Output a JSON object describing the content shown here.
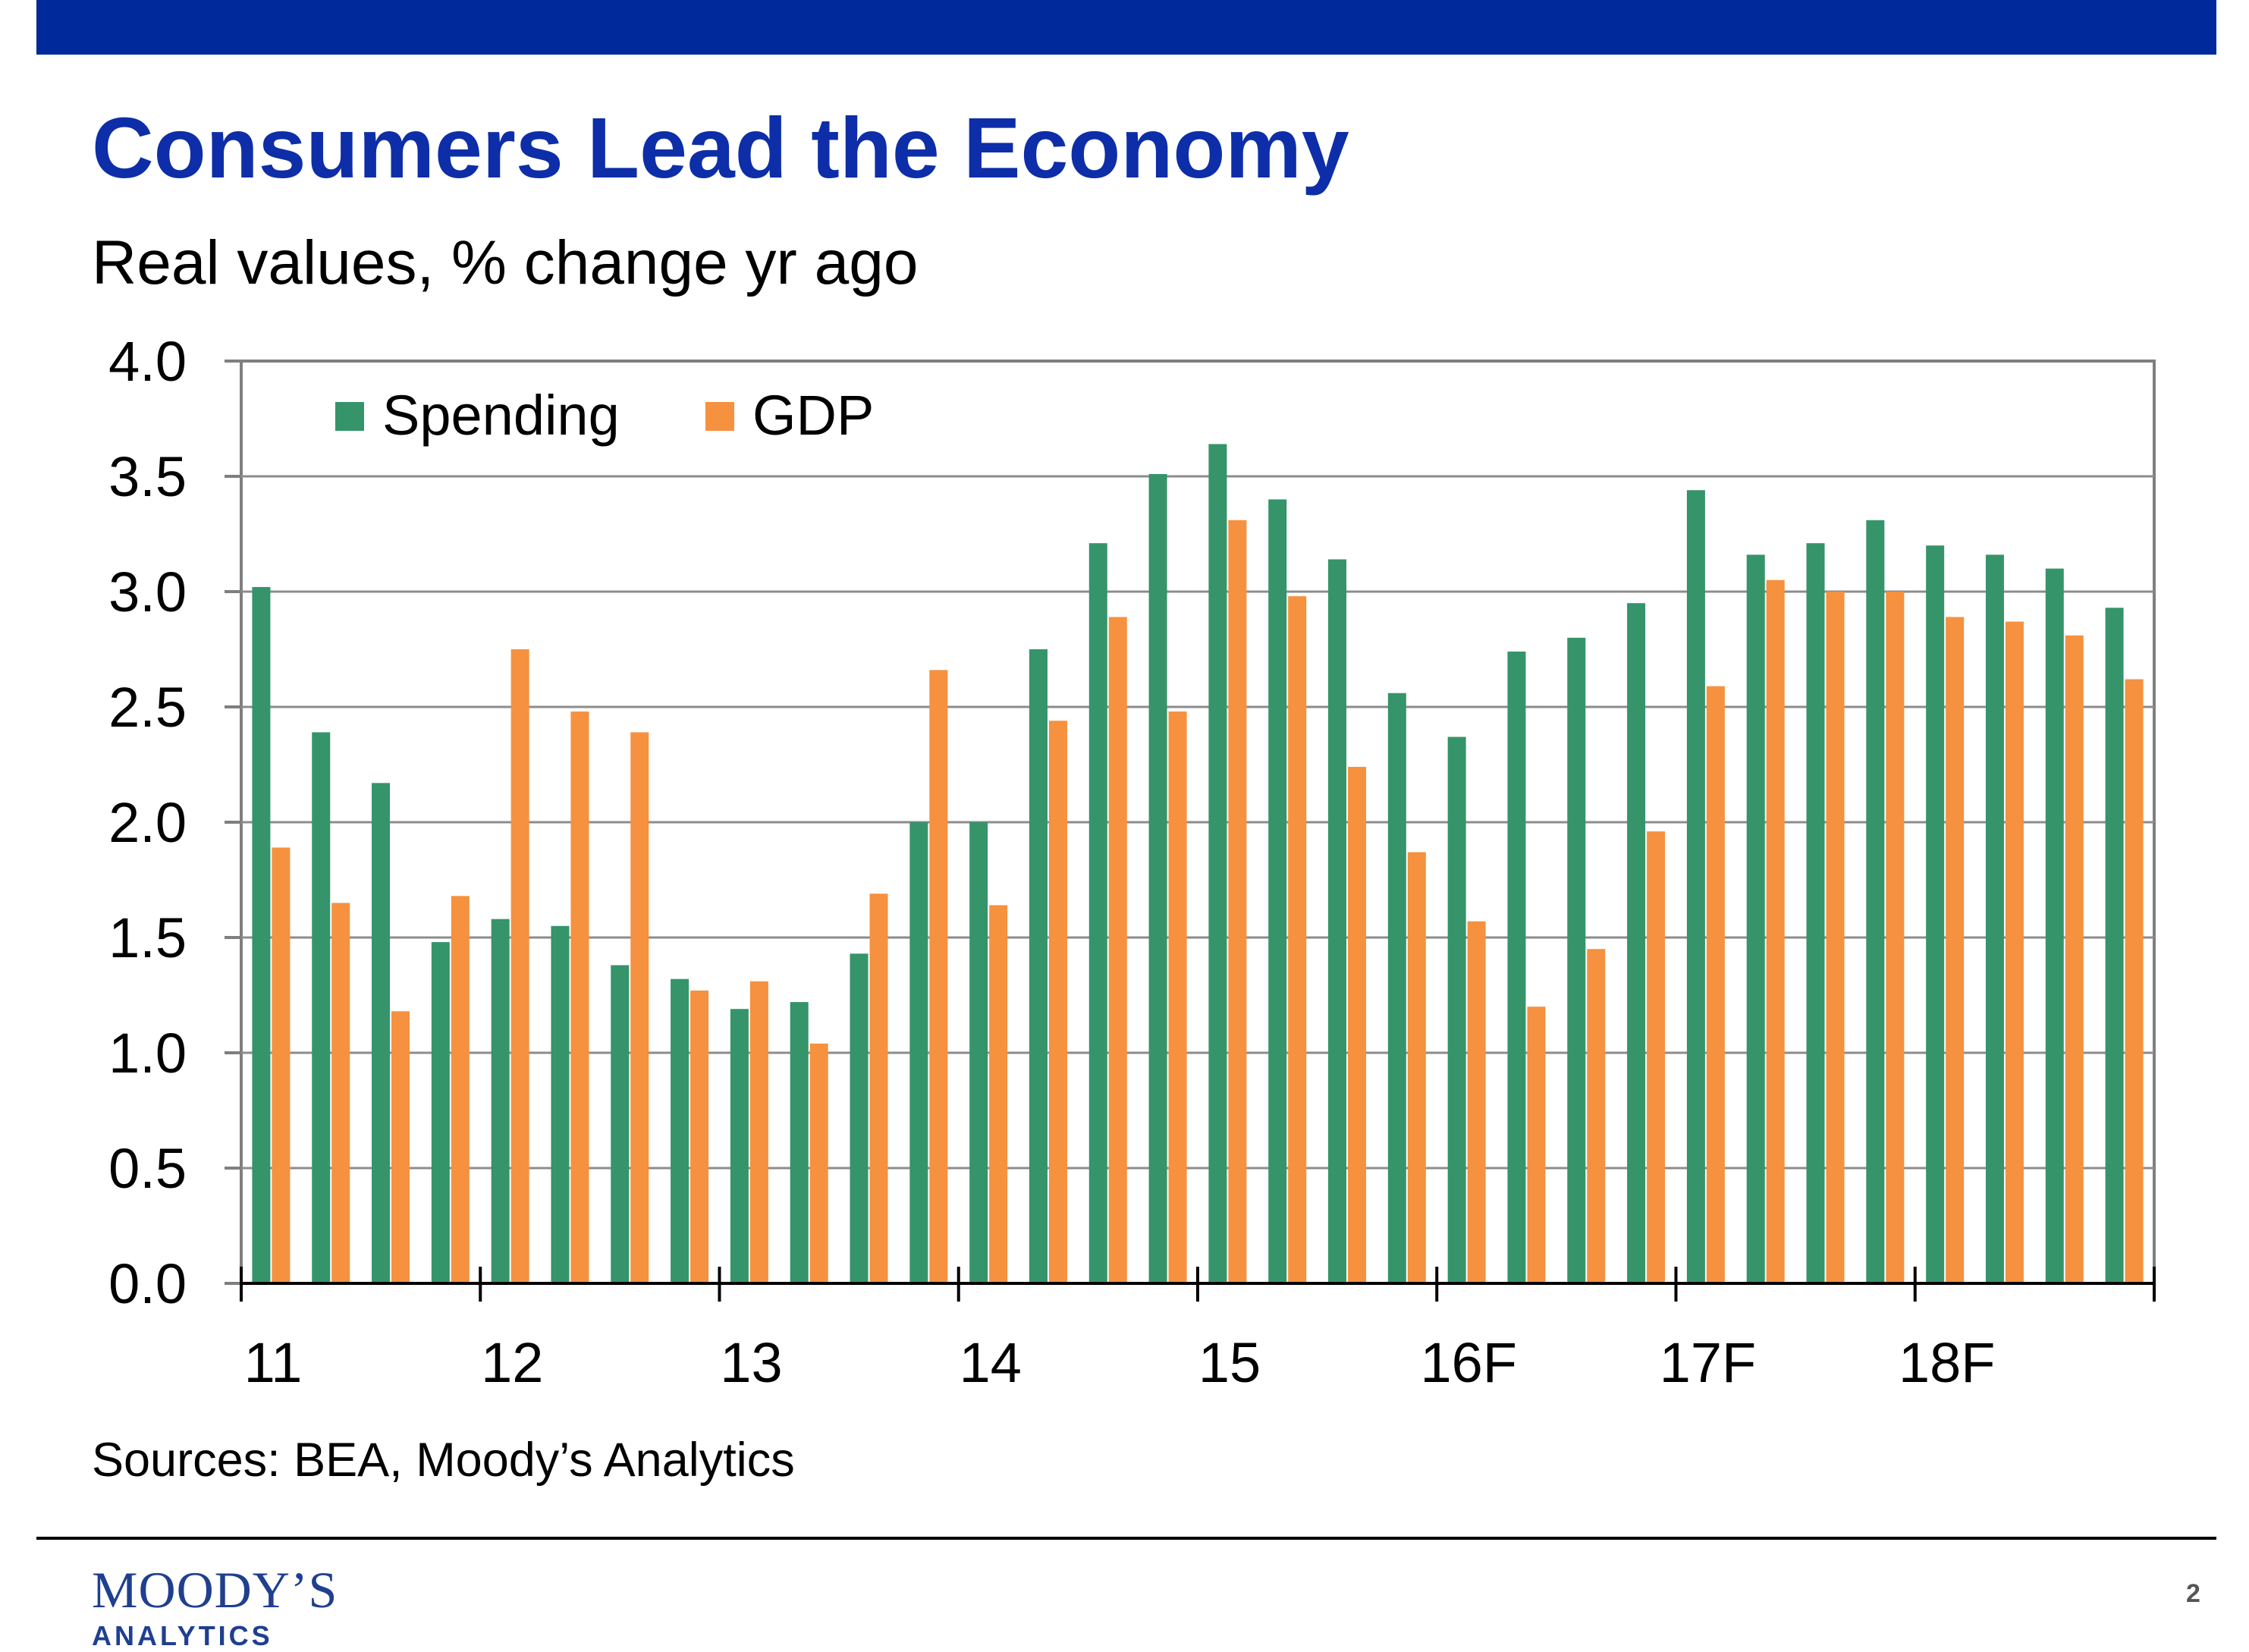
{
  "slide": {
    "title": "Consumers Lead the Economy",
    "source": "Sources: BEA, Moody’s Analytics",
    "page_number": "2",
    "logo": {
      "name": "MOODY’S",
      "sub": "ANALYTICS"
    },
    "colors": {
      "top_bar": "#002a9c",
      "title": "#0d2ea8",
      "logo": "#1f3f8f"
    }
  },
  "chart_data": {
    "type": "bar",
    "title": "",
    "subtitle": "Real values, % change yr ago",
    "xlabel": "",
    "ylabel": "",
    "ylim": [
      0,
      4.0
    ],
    "yticks": [
      "0.0",
      "0.5",
      "1.0",
      "1.5",
      "2.0",
      "2.5",
      "3.0",
      "3.5",
      "4.0"
    ],
    "year_labels": [
      "11",
      "12",
      "13",
      "14",
      "15",
      "16F",
      "17F",
      "18F"
    ],
    "quarters_per_year": 4,
    "grid": true,
    "legend_position": "top-left",
    "series": [
      {
        "name": "Spending",
        "color": "#35946a",
        "values": [
          3.02,
          2.39,
          2.17,
          1.48,
          1.58,
          1.55,
          1.38,
          1.32,
          1.19,
          1.22,
          1.43,
          2.0,
          2.0,
          2.75,
          3.21,
          3.51,
          3.64,
          3.4,
          3.14,
          2.56,
          2.37,
          2.74,
          2.8,
          2.95,
          3.44,
          3.16,
          3.21,
          3.31,
          3.2,
          3.16,
          3.1,
          2.93
        ]
      },
      {
        "name": "GDP",
        "color": "#f5913f",
        "values": [
          1.89,
          1.65,
          1.18,
          1.68,
          2.75,
          2.48,
          2.39,
          1.27,
          1.31,
          1.04,
          1.69,
          2.66,
          1.64,
          2.44,
          2.89,
          2.48,
          3.31,
          2.98,
          2.24,
          1.87,
          1.57,
          1.2,
          1.45,
          1.96,
          2.59,
          3.05,
          3.0,
          3.0,
          2.89,
          2.87,
          2.81,
          2.62
        ]
      }
    ]
  }
}
